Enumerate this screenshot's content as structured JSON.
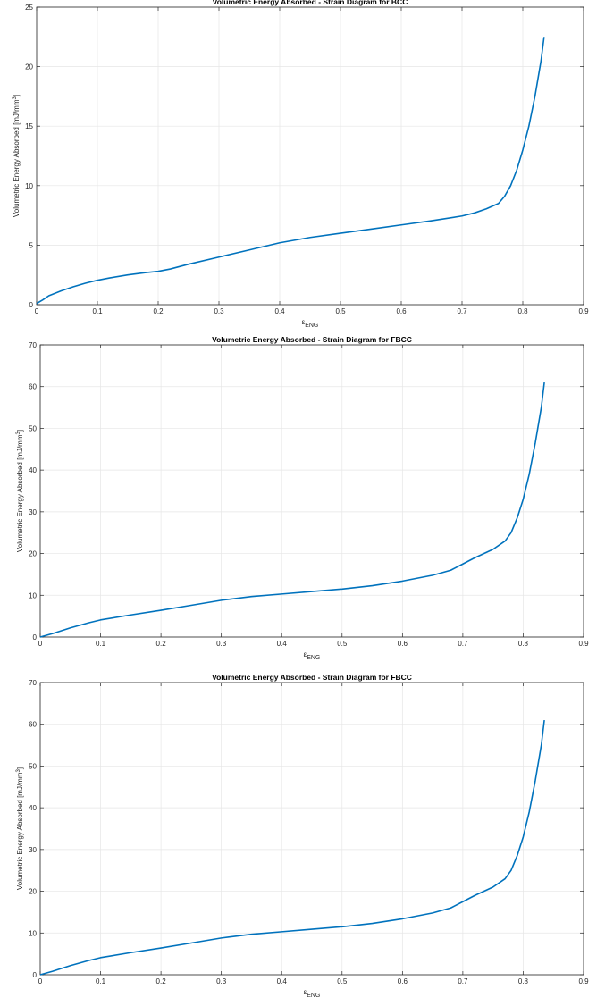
{
  "chart_data": [
    {
      "type": "line",
      "title": "Volumetric Energy Absorbed - Strain Diagram for BCC",
      "xlabel_symbol": "ε",
      "xlabel_sub": "ENG",
      "ylabel_main": "Volumetric Energy Absorbed [mJ/mm",
      "ylabel_sup": "3",
      "ylabel_end": "]",
      "xlim": [
        0,
        0.9
      ],
      "ylim": [
        0,
        25
      ],
      "grid": true,
      "color": "#0072BD",
      "xticks": [
        "0",
        "0.1",
        "0.2",
        "0.3",
        "0.4",
        "0.5",
        "0.6",
        "0.7",
        "0.8",
        "0.9"
      ],
      "yticks": [
        "0",
        "5",
        "10",
        "15",
        "20",
        "25"
      ],
      "series": [
        {
          "x": [
            0,
            0.01,
            0.02,
            0.04,
            0.06,
            0.08,
            0.1,
            0.12,
            0.15,
            0.18,
            0.2,
            0.22,
            0.25,
            0.3,
            0.35,
            0.4,
            0.45,
            0.5,
            0.55,
            0.6,
            0.65,
            0.7,
            0.72,
            0.74,
            0.76,
            0.77,
            0.78,
            0.79,
            0.8,
            0.81,
            0.82,
            0.83,
            0.835
          ],
          "y": [
            0.1,
            0.4,
            0.75,
            1.15,
            1.5,
            1.8,
            2.05,
            2.25,
            2.5,
            2.7,
            2.8,
            3.0,
            3.4,
            4.0,
            4.6,
            5.2,
            5.65,
            6.0,
            6.35,
            6.7,
            7.05,
            7.45,
            7.7,
            8.05,
            8.5,
            9.1,
            10.0,
            11.3,
            13.0,
            15.0,
            17.5,
            20.5,
            22.5
          ]
        }
      ]
    },
    {
      "type": "line",
      "title": "Volumetric Energy Absorbed - Strain Diagram for FBCC",
      "xlabel_symbol": "ε",
      "xlabel_sub": "ENG",
      "ylabel_main": "Volumetric Energy Absorbed [mJ/mm",
      "ylabel_sup": "3",
      "ylabel_end": "]",
      "xlim": [
        0,
        0.9
      ],
      "ylim": [
        0,
        70
      ],
      "grid": true,
      "color": "#0072BD",
      "xticks": [
        "0",
        "0.1",
        "0.2",
        "0.3",
        "0.4",
        "0.5",
        "0.6",
        "0.7",
        "0.8",
        "0.9"
      ],
      "yticks": [
        "0",
        "10",
        "20",
        "30",
        "40",
        "50",
        "60",
        "70"
      ],
      "series": [
        {
          "x": [
            0,
            0.02,
            0.05,
            0.08,
            0.1,
            0.15,
            0.2,
            0.25,
            0.3,
            0.35,
            0.4,
            0.45,
            0.5,
            0.55,
            0.6,
            0.65,
            0.68,
            0.7,
            0.72,
            0.75,
            0.77,
            0.78,
            0.79,
            0.8,
            0.81,
            0.82,
            0.83,
            0.835
          ],
          "y": [
            0,
            0.8,
            2.2,
            3.4,
            4.1,
            5.3,
            6.4,
            7.6,
            8.8,
            9.7,
            10.3,
            10.9,
            11.5,
            12.3,
            13.4,
            14.8,
            16.0,
            17.5,
            19.0,
            21.0,
            23.0,
            25.0,
            28.5,
            33.0,
            39.0,
            46.5,
            55.0,
            61.0
          ]
        }
      ]
    },
    {
      "type": "line",
      "title": "Volumetric Energy Absorbed - Strain Diagram for FBCC",
      "xlabel_symbol": "ε",
      "xlabel_sub": "ENG",
      "ylabel_main": "Volumetric Energy Absorbed [mJ/mm",
      "ylabel_sup": "3",
      "ylabel_end": "]",
      "xlim": [
        0,
        0.9
      ],
      "ylim": [
        0,
        70
      ],
      "grid": true,
      "color": "#0072BD",
      "xticks": [
        "0",
        "0.1",
        "0.2",
        "0.3",
        "0.4",
        "0.5",
        "0.6",
        "0.7",
        "0.8",
        "0.9"
      ],
      "yticks": [
        "0",
        "10",
        "20",
        "30",
        "40",
        "50",
        "60",
        "70"
      ],
      "series": [
        {
          "x": [
            0,
            0.02,
            0.05,
            0.08,
            0.1,
            0.15,
            0.2,
            0.25,
            0.3,
            0.35,
            0.4,
            0.45,
            0.5,
            0.55,
            0.6,
            0.65,
            0.68,
            0.7,
            0.72,
            0.75,
            0.77,
            0.78,
            0.79,
            0.8,
            0.81,
            0.82,
            0.83,
            0.835
          ],
          "y": [
            0,
            0.8,
            2.2,
            3.4,
            4.1,
            5.3,
            6.4,
            7.6,
            8.8,
            9.7,
            10.3,
            10.9,
            11.5,
            12.3,
            13.4,
            14.8,
            16.0,
            17.5,
            19.0,
            21.0,
            23.0,
            25.0,
            28.5,
            33.0,
            39.0,
            46.5,
            55.0,
            61.0
          ]
        }
      ]
    }
  ]
}
